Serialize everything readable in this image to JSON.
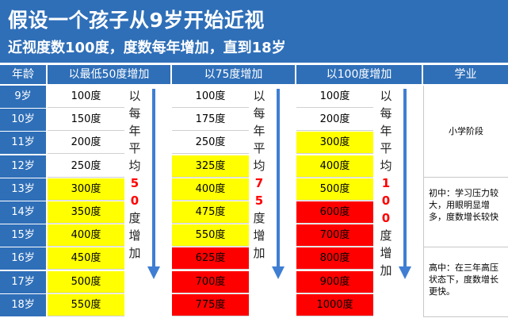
{
  "header": {
    "title": "假设一个孩子从9岁开始近视",
    "subtitle": "近视度数100度，度数每年增加，直到18岁"
  },
  "columns": [
    "年龄",
    "以最低50度增加",
    "以75度增加",
    "以100度增加",
    "学业"
  ],
  "colors": {
    "header_blue": "#2f6fb8",
    "white": "#ffffff",
    "yellow": "#ffff00",
    "red": "#ff0000",
    "arrow_blue": "#3f7ed2"
  },
  "rows": [
    {
      "age": "9岁",
      "v50": "100度",
      "c50": "white",
      "v75": "100度",
      "c75": "white",
      "v100": "100度",
      "c100": "white"
    },
    {
      "age": "10岁",
      "v50": "150度",
      "c50": "white",
      "v75": "175度",
      "c75": "white",
      "v100": "200度",
      "c100": "white"
    },
    {
      "age": "11岁",
      "v50": "200度",
      "c50": "white",
      "v75": "250度",
      "c75": "white",
      "v100": "300度",
      "c100": "yellow"
    },
    {
      "age": "12岁",
      "v50": "250度",
      "c50": "white",
      "v75": "325度",
      "c75": "yellow",
      "v100": "400度",
      "c100": "yellow"
    },
    {
      "age": "13岁",
      "v50": "300度",
      "c50": "yellow",
      "v75": "400度",
      "c75": "yellow",
      "v100": "500度",
      "c100": "yellow"
    },
    {
      "age": "14岁",
      "v50": "350度",
      "c50": "yellow",
      "v75": "475度",
      "c75": "yellow",
      "v100": "600度",
      "c100": "red"
    },
    {
      "age": "15岁",
      "v50": "400度",
      "c50": "yellow",
      "v75": "550度",
      "c75": "yellow",
      "v100": "700度",
      "c100": "red"
    },
    {
      "age": "16岁",
      "v50": "450度",
      "c50": "yellow",
      "v75": "625度",
      "c75": "red",
      "v100": "800度",
      "c100": "red"
    },
    {
      "age": "17岁",
      "v50": "500度",
      "c50": "yellow",
      "v75": "700度",
      "c75": "red",
      "v100": "900度",
      "c100": "red"
    },
    {
      "age": "18岁",
      "v50": "550度",
      "c50": "yellow",
      "v75": "775度",
      "c75": "red",
      "v100": "1000度",
      "c100": "red"
    }
  ],
  "arrows": {
    "a50": {
      "top": [
        "以",
        "每",
        "年",
        "平",
        "均"
      ],
      "num": [
        "5",
        "0"
      ],
      "bottom": [
        "度",
        "增",
        "加"
      ]
    },
    "a75": {
      "top": [
        "以",
        "每",
        "年",
        "平",
        "均"
      ],
      "num": [
        "7",
        "5"
      ],
      "bottom": [
        "度",
        "增",
        "加"
      ]
    },
    "a100": {
      "top": [
        "以",
        "每",
        "年",
        "平",
        "均"
      ],
      "num": [
        "1",
        "0",
        "0"
      ],
      "bottom": [
        "度",
        "增",
        "加"
      ]
    }
  },
  "stages": {
    "primary": "小学阶段",
    "junior": "初中：学习压力较大，用眼明显增多，度数增长较快",
    "senior": "高中：在三年高压状态下，度数增长更快。"
  }
}
